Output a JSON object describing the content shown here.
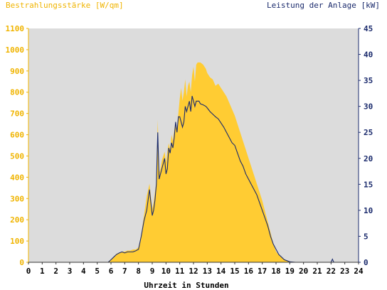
{
  "chart_data": {
    "type": "area",
    "title_left": "Bestrahlungsstärke [W/qm]",
    "title_right": "Leistung der Anlage [kW]",
    "xlabel": "Uhrzeit in Stunden",
    "xlim": [
      0,
      24
    ],
    "ylim_left": [
      0,
      1100
    ],
    "ylim_right": [
      0,
      45
    ],
    "x_ticks": [
      "0",
      "1",
      "2",
      "3",
      "4",
      "5",
      "6",
      "7",
      "8",
      "9",
      "10",
      "11",
      "12",
      "13",
      "14",
      "15",
      "16",
      "17",
      "18",
      "19",
      "20",
      "21",
      "22",
      "23",
      "24"
    ],
    "y_left_ticks": [
      "0",
      "100",
      "200",
      "300",
      "400",
      "500",
      "600",
      "700",
      "800",
      "900",
      "1000",
      "1100"
    ],
    "y_right_ticks": [
      "0",
      "5",
      "10",
      "15",
      "20",
      "25",
      "30",
      "35",
      "40",
      "45"
    ],
    "colors": {
      "background": "#dcdcdc",
      "irradiance": "#ffcc33",
      "power": "#1a2a6c",
      "left_axis_text": "#f0b400",
      "right_axis_text": "#1a2a6c"
    },
    "series": [
      {
        "axis": "left",
        "x": [
          0,
          5.8,
          6.0,
          6.2,
          6.4,
          6.6,
          6.8,
          7.0,
          7.2,
          7.4,
          7.6,
          7.8,
          8.0,
          8.2,
          8.4,
          8.6,
          8.8,
          9.0,
          9.1,
          9.2,
          9.3,
          9.4,
          9.5,
          9.6,
          9.7,
          9.8,
          9.9,
          10.0,
          10.1,
          10.2,
          10.3,
          10.4,
          10.5,
          10.6,
          10.7,
          10.8,
          10.9,
          11.0,
          11.1,
          11.2,
          11.3,
          11.4,
          11.5,
          11.6,
          11.7,
          11.8,
          11.9,
          12.0,
          12.1,
          12.2,
          12.3,
          12.4,
          12.5,
          12.7,
          12.9,
          13.0,
          13.2,
          13.4,
          13.6,
          13.8,
          14.0,
          14.2,
          14.4,
          14.6,
          14.8,
          15.0,
          15.2,
          15.4,
          15.6,
          15.8,
          16.0,
          16.2,
          16.4,
          16.6,
          16.8,
          17.0,
          17.2,
          17.4,
          17.6,
          17.8,
          18.0,
          18.2,
          18.4,
          18.6,
          18.8,
          19.0,
          19.2,
          19.4,
          19.6,
          24
        ],
        "values": [
          0,
          0,
          10,
          25,
          40,
          45,
          50,
          50,
          55,
          55,
          60,
          60,
          70,
          130,
          220,
          310,
          370,
          250,
          280,
          330,
          380,
          670,
          420,
          440,
          480,
          500,
          520,
          470,
          520,
          560,
          530,
          600,
          570,
          620,
          660,
          620,
          700,
          770,
          820,
          760,
          800,
          860,
          780,
          830,
          850,
          800,
          880,
          920,
          850,
          930,
          940,
          940,
          940,
          930,
          910,
          890,
          870,
          860,
          830,
          840,
          820,
          800,
          780,
          750,
          720,
          690,
          650,
          610,
          570,
          530,
          490,
          450,
          410,
          370,
          330,
          290,
          240,
          190,
          140,
          90,
          50,
          35,
          25,
          15,
          8,
          3,
          1,
          0,
          0,
          0
        ]
      },
      {
        "axis": "right",
        "x": [
          0,
          5.8,
          6.0,
          6.2,
          6.4,
          6.6,
          6.8,
          7.0,
          7.2,
          7.4,
          7.6,
          7.8,
          8.0,
          8.2,
          8.4,
          8.6,
          8.8,
          9.0,
          9.1,
          9.2,
          9.3,
          9.4,
          9.5,
          9.6,
          9.7,
          9.8,
          9.9,
          10.0,
          10.1,
          10.2,
          10.3,
          10.4,
          10.5,
          10.6,
          10.7,
          10.8,
          10.9,
          11.0,
          11.1,
          11.2,
          11.3,
          11.4,
          11.5,
          11.6,
          11.7,
          11.8,
          11.9,
          12.0,
          12.1,
          12.2,
          12.3,
          12.4,
          12.5,
          12.7,
          12.9,
          13.0,
          13.2,
          13.4,
          13.6,
          13.8,
          14.0,
          14.2,
          14.4,
          14.6,
          14.8,
          15.0,
          15.2,
          15.4,
          15.6,
          15.8,
          16.0,
          16.2,
          16.4,
          16.6,
          16.8,
          17.0,
          17.2,
          17.4,
          17.6,
          17.8,
          18.0,
          18.2,
          18.4,
          18.6,
          18.8,
          19.0,
          19.2,
          19.4,
          19.6,
          20.0,
          22.0,
          22.1,
          22.2,
          24
        ],
        "values": [
          0,
          0,
          0.5,
          1,
          1.5,
          1.8,
          2,
          1.8,
          2,
          2,
          2,
          2.2,
          2.5,
          5,
          8,
          10,
          14,
          9,
          10,
          12,
          15,
          25,
          16,
          17,
          18,
          19,
          20,
          17,
          18,
          22,
          21,
          23,
          22,
          24,
          27,
          25,
          28,
          28,
          27,
          26,
          27,
          30,
          29,
          30,
          31,
          29,
          32,
          31,
          30,
          31,
          31,
          31,
          30.5,
          30.3,
          30,
          29.7,
          29,
          28.5,
          28,
          27.6,
          26.8,
          26,
          25,
          24,
          23,
          22.5,
          21,
          19.5,
          18.5,
          17,
          16,
          15,
          14,
          13,
          11.5,
          10,
          8.5,
          7,
          5,
          3.5,
          2.5,
          1.5,
          1,
          0.5,
          0.3,
          0.1,
          0.05,
          0,
          0,
          0,
          0,
          0.6,
          0,
          0
        ]
      }
    ]
  }
}
